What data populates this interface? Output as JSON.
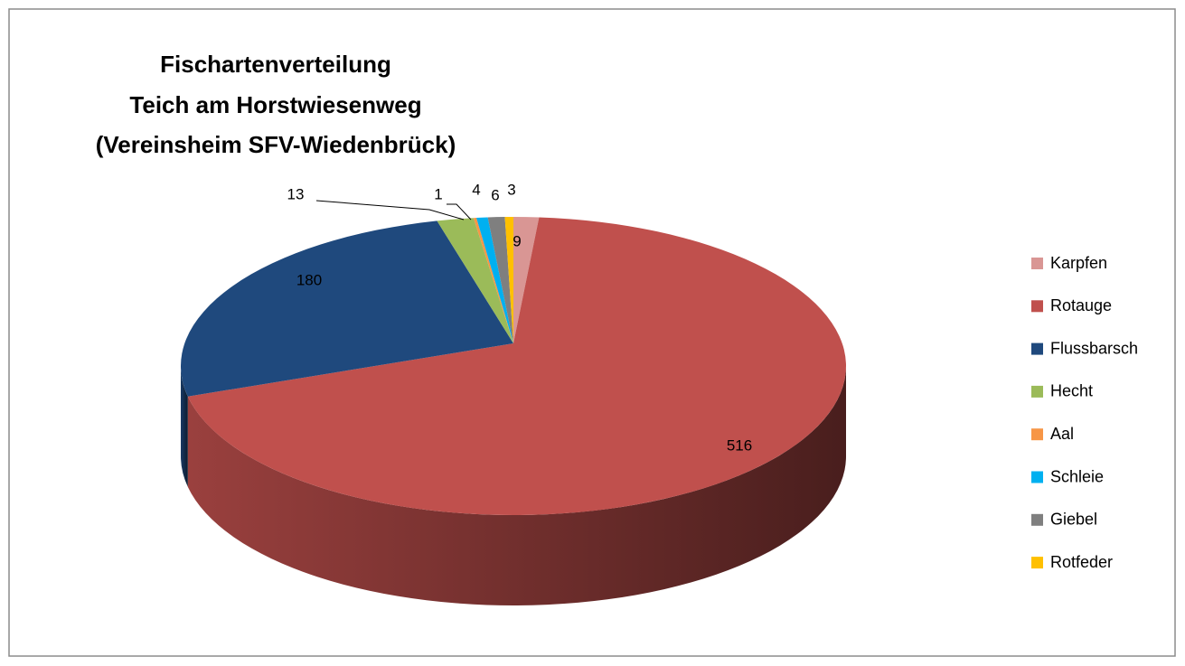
{
  "chart_data": {
    "type": "pie3d",
    "title": [
      "Fischartenverteilung",
      "Teich am Horstwiesenweg",
      "(Vereinsheim SFV-Wiedenbrück)"
    ],
    "categories": [
      "Karpfen",
      "Rotauge",
      "Flussbarsch",
      "Hecht",
      "Aal",
      "Schleie",
      "Giebel",
      "Rotfeder"
    ],
    "values": [
      9,
      516,
      180,
      13,
      1,
      4,
      6,
      3
    ],
    "colors": [
      "#d99694",
      "#c0504d",
      "#1f497d",
      "#9bbb59",
      "#f79646",
      "#00b0f0",
      "#7f7f7f",
      "#ffc000"
    ],
    "legend": "right"
  }
}
